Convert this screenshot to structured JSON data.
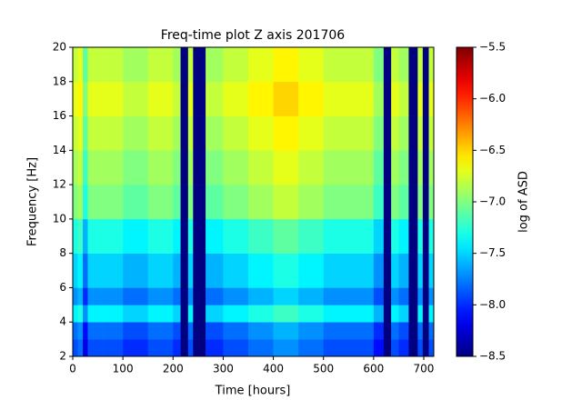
{
  "chart_data": {
    "type": "heatmap",
    "title": "Freq-time plot Z axis 201706",
    "xlabel": "Time [hours]",
    "ylabel": "Frequency [Hz]",
    "colorbar_label": "log of ASD",
    "colormap": "jet",
    "xlim": [
      0,
      720
    ],
    "ylim": [
      2,
      20
    ],
    "clim": [
      -8.5,
      -5.5
    ],
    "xticks": [
      0,
      100,
      200,
      300,
      400,
      500,
      600,
      700
    ],
    "yticks": [
      2,
      4,
      6,
      8,
      10,
      12,
      14,
      16,
      18,
      20
    ],
    "cticks": [
      {
        "value": -8.5,
        "label": "−8.5"
      },
      {
        "value": -8.0,
        "label": "−8.0"
      },
      {
        "value": -7.5,
        "label": "−7.5"
      },
      {
        "value": -7.0,
        "label": "−7.0"
      },
      {
        "value": -6.5,
        "label": "−6.5"
      },
      {
        "value": -6.0,
        "label": "−6.0"
      },
      {
        "value": -5.5,
        "label": "−5.5"
      }
    ],
    "xbins": [
      0,
      10,
      20,
      30,
      60,
      100,
      150,
      200,
      215,
      230,
      240,
      265,
      300,
      350,
      400,
      450,
      500,
      550,
      600,
      620,
      635,
      650,
      670,
      688,
      698,
      710,
      720
    ],
    "ybins": [
      2,
      3,
      4,
      5,
      6,
      8,
      10,
      12,
      14,
      16,
      18,
      20
    ],
    "values": [
      [
        -7.9,
        -7.8,
        -8.2,
        -7.9,
        -7.9,
        -8.0,
        -7.9,
        -8.0,
        -8.5,
        -7.9,
        -8.5,
        -8.0,
        -7.9,
        -7.8,
        -7.7,
        -7.8,
        -7.9,
        -7.9,
        -8.1,
        -8.5,
        -7.9,
        -8.0,
        -8.5,
        -7.9,
        -8.5,
        -7.9
      ],
      [
        -7.8,
        -7.7,
        -8.1,
        -7.8,
        -7.8,
        -7.9,
        -7.8,
        -7.9,
        -8.5,
        -7.8,
        -8.5,
        -7.9,
        -7.8,
        -7.7,
        -7.6,
        -7.7,
        -7.8,
        -7.8,
        -8.0,
        -8.5,
        -7.8,
        -7.9,
        -8.5,
        -7.8,
        -8.5,
        -7.8
      ],
      [
        -7.4,
        -7.3,
        -7.7,
        -7.4,
        -7.4,
        -7.5,
        -7.4,
        -7.5,
        -8.5,
        -7.4,
        -8.5,
        -7.5,
        -7.4,
        -7.3,
        -7.2,
        -7.3,
        -7.4,
        -7.4,
        -7.6,
        -8.5,
        -7.4,
        -7.5,
        -8.5,
        -7.4,
        -8.5,
        -7.4
      ],
      [
        -7.7,
        -7.6,
        -8.0,
        -7.7,
        -7.7,
        -7.8,
        -7.7,
        -7.8,
        -8.5,
        -7.7,
        -8.5,
        -7.8,
        -7.7,
        -7.6,
        -7.5,
        -7.6,
        -7.7,
        -7.7,
        -7.9,
        -8.5,
        -7.7,
        -7.8,
        -8.5,
        -7.7,
        -8.5,
        -7.7
      ],
      [
        -7.5,
        -7.4,
        -7.8,
        -7.5,
        -7.5,
        -7.6,
        -7.5,
        -7.6,
        -8.5,
        -7.5,
        -8.5,
        -7.6,
        -7.5,
        -7.4,
        -7.3,
        -7.4,
        -7.5,
        -7.5,
        -7.7,
        -8.5,
        -7.5,
        -7.6,
        -8.5,
        -7.5,
        -8.5,
        -7.5
      ],
      [
        -7.3,
        -7.2,
        -7.6,
        -7.3,
        -7.3,
        -7.4,
        -7.3,
        -7.4,
        -8.5,
        -7.3,
        -8.5,
        -7.4,
        -7.3,
        -7.2,
        -7.1,
        -7.2,
        -7.3,
        -7.3,
        -7.5,
        -8.5,
        -7.3,
        -7.4,
        -8.5,
        -7.3,
        -8.5,
        -7.3
      ],
      [
        -7.0,
        -6.9,
        -7.3,
        -7.0,
        -7.0,
        -7.1,
        -7.0,
        -7.1,
        -8.5,
        -7.0,
        -8.5,
        -7.1,
        -7.0,
        -6.9,
        -6.8,
        -6.9,
        -7.0,
        -7.0,
        -7.2,
        -8.5,
        -7.0,
        -7.1,
        -8.5,
        -7.0,
        -8.5,
        -7.0
      ],
      [
        -6.9,
        -6.8,
        -7.2,
        -6.9,
        -6.9,
        -7.0,
        -6.9,
        -7.0,
        -8.5,
        -6.9,
        -8.5,
        -7.0,
        -6.9,
        -6.8,
        -6.7,
        -6.8,
        -6.9,
        -6.9,
        -7.1,
        -8.5,
        -6.9,
        -7.0,
        -8.5,
        -6.9,
        -8.5,
        -6.9
      ],
      [
        -6.8,
        -6.7,
        -7.1,
        -6.8,
        -6.8,
        -6.9,
        -6.8,
        -6.9,
        -8.5,
        -6.8,
        -8.5,
        -6.9,
        -6.8,
        -6.7,
        -6.6,
        -6.7,
        -6.8,
        -6.8,
        -7.0,
        -8.5,
        -6.8,
        -6.9,
        -8.5,
        -6.8,
        -8.5,
        -6.8
      ],
      [
        -6.7,
        -6.6,
        -7.0,
        -6.7,
        -6.7,
        -6.8,
        -6.7,
        -6.8,
        -8.5,
        -6.7,
        -8.5,
        -6.8,
        -6.7,
        -6.6,
        -6.5,
        -6.6,
        -6.7,
        -6.7,
        -6.9,
        -8.5,
        -6.7,
        -6.8,
        -8.5,
        -6.7,
        -8.5,
        -6.7
      ],
      [
        -6.8,
        -6.7,
        -7.1,
        -6.8,
        -6.8,
        -6.9,
        -6.8,
        -6.9,
        -8.5,
        -6.8,
        -8.5,
        -6.9,
        -6.8,
        -6.7,
        -6.6,
        -6.7,
        -6.8,
        -6.8,
        -7.0,
        -8.5,
        -6.8,
        -6.9,
        -8.5,
        -6.8,
        -8.5,
        -6.8
      ]
    ]
  }
}
